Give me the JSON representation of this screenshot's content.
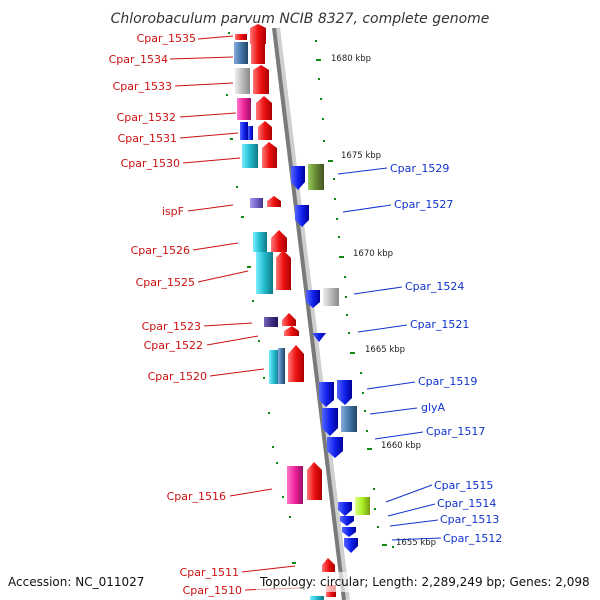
{
  "title": "Chlorobaculum parvum NCIB 8327, complete genome",
  "footer": {
    "accession": "Accession: NC_011027",
    "topology": "Topology: circular; Length: 2,289,249 bp; Genes: 2,098"
  },
  "scale_labels": [
    {
      "text": "1680 kbp",
      "position_kbp": 1680
    },
    {
      "text": "1675 kbp",
      "position_kbp": 1675
    },
    {
      "text": "1670 kbp",
      "position_kbp": 1670
    },
    {
      "text": "1665 kbp",
      "position_kbp": 1665
    },
    {
      "text": "1660 kbp",
      "position_kbp": 1660
    },
    {
      "text": "1655 kbp",
      "position_kbp": 1655
    }
  ],
  "genes_reverse_strand": [
    {
      "name": "Cpar_1535",
      "color": "#ff2222"
    },
    {
      "name": "Cpar_1534",
      "color": "#4477aa"
    },
    {
      "name": "Cpar_1533",
      "color": "#bbbbbb"
    },
    {
      "name": "Cpar_1532",
      "color": "#ee2299"
    },
    {
      "name": "Cpar_1531",
      "color": "#1133cc"
    },
    {
      "name": "Cpar_1530",
      "color": "#22bbcc"
    },
    {
      "name": "ispF",
      "color": "#7766cc"
    },
    {
      "name": "Cpar_1526",
      "color": "#22bbcc"
    },
    {
      "name": "Cpar_1525",
      "color": "#22bbcc"
    },
    {
      "name": "Cpar_1523",
      "color": "#443388"
    },
    {
      "name": "Cpar_1522",
      "color": "#ff2222"
    },
    {
      "name": "Cpar_1520",
      "color": "#22bbcc"
    },
    {
      "name": "Cpar_1516",
      "color": "#ee2299"
    },
    {
      "name": "Cpar_1511",
      "color": "#ff2222"
    },
    {
      "name": "Cpar_1510",
      "color": "#22bbcc"
    }
  ],
  "genes_forward_strand": [
    {
      "name": "Cpar_1529",
      "color": "#1122ee"
    },
    {
      "name": "Cpar_1527",
      "color": "#1122ee"
    },
    {
      "name": "Cpar_1524",
      "color": "#bbbbbb"
    },
    {
      "name": "Cpar_1521",
      "color": "#1122ee"
    },
    {
      "name": "Cpar_1519",
      "color": "#1122ee"
    },
    {
      "name": "glyA",
      "color": "#4477aa"
    },
    {
      "name": "Cpar_1517",
      "color": "#1122ee"
    },
    {
      "name": "Cpar_1515",
      "color": "#aaee22"
    },
    {
      "name": "Cpar_1514",
      "color": "#1122ee"
    },
    {
      "name": "Cpar_1513",
      "color": "#1122ee"
    },
    {
      "name": "Cpar_1512",
      "color": "#1122ee"
    }
  ],
  "colors": {
    "backbone": "#888888",
    "tick": "#118811",
    "left_label": "#cc1111",
    "right_label": "#1133cc"
  }
}
